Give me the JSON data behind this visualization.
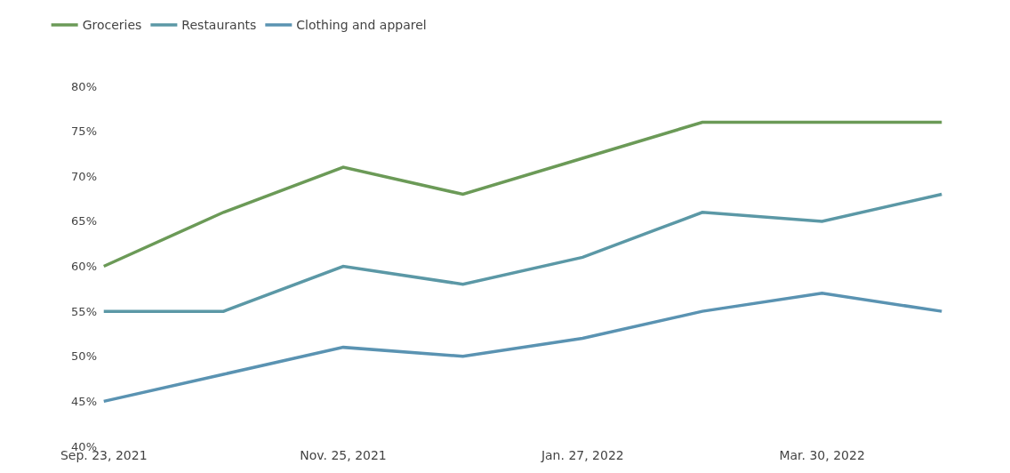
{
  "chart_data": {
    "type": "line",
    "categories": [
      "Sep. 23, 2021",
      null,
      "Nov. 25, 2021",
      null,
      "Jan. 27, 2022",
      null,
      "Mar. 30, 2022",
      null
    ],
    "series": [
      {
        "name": "Groceries",
        "color": "#6b9a57",
        "values": [
          60,
          66,
          71,
          68,
          72,
          76,
          76,
          76
        ]
      },
      {
        "name": "Restaurants",
        "color": "#5b98a6",
        "values": [
          55,
          55,
          60,
          58,
          61,
          66,
          65,
          68
        ]
      },
      {
        "name": "Clothing and apparel",
        "color": "#5a93b2",
        "values": [
          45,
          48,
          51,
          50,
          52,
          55,
          57,
          55
        ]
      }
    ],
    "ylim": [
      40,
      80
    ],
    "yticks": [
      {
        "value": 40,
        "label": "40%"
      },
      {
        "value": 45,
        "label": "45%"
      },
      {
        "value": 50,
        "label": "50%"
      },
      {
        "value": 55,
        "label": "55%"
      },
      {
        "value": 60,
        "label": "60%"
      },
      {
        "value": 65,
        "label": "65%"
      },
      {
        "value": 70,
        "label": "70%"
      },
      {
        "value": 75,
        "label": "75%"
      },
      {
        "value": 80,
        "label": "80%"
      }
    ],
    "legend": "top left",
    "marker": "none",
    "line_style": "solid"
  }
}
